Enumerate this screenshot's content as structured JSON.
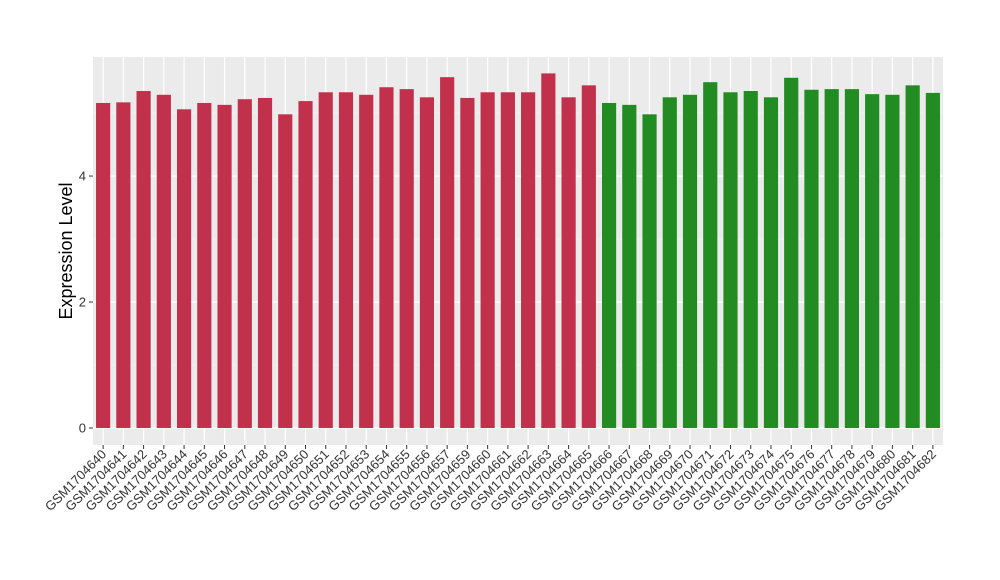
{
  "chart_data": {
    "type": "bar",
    "y_label": "Expression Level",
    "categories": [
      "GSM1704640",
      "GSM1704641",
      "GSM1704642",
      "GSM1704643",
      "GSM1704644",
      "GSM1704645",
      "GSM1704646",
      "GSM1704647",
      "GSM1704648",
      "GSM1704649",
      "GSM1704650",
      "GSM1704651",
      "GSM1704652",
      "GSM1704653",
      "GSM1704654",
      "GSM1704655",
      "GSM1704656",
      "GSM1704657",
      "GSM1704659",
      "GSM1704660",
      "GSM1704661",
      "GSM1704662",
      "GSM1704663",
      "GSM1704664",
      "GSM1704665",
      "GSM1704666",
      "GSM1704667",
      "GSM1704668",
      "GSM1704669",
      "GSM1704670",
      "GSM1704671",
      "GSM1704672",
      "GSM1704673",
      "GSM1704674",
      "GSM1704675",
      "GSM1704676",
      "GSM1704677",
      "GSM1704678",
      "GSM1704679",
      "GSM1704680",
      "GSM1704681",
      "GSM1704682"
    ],
    "values": [
      5.16,
      5.17,
      5.35,
      5.29,
      5.06,
      5.16,
      5.13,
      5.22,
      5.24,
      4.98,
      5.19,
      5.33,
      5.33,
      5.29,
      5.41,
      5.38,
      5.25,
      5.57,
      5.24,
      5.33,
      5.33,
      5.33,
      5.63,
      5.25,
      5.44,
      5.16,
      5.13,
      4.98,
      5.25,
      5.29,
      5.49,
      5.33,
      5.35,
      5.25,
      5.56,
      5.37,
      5.38,
      5.38,
      5.3,
      5.29,
      5.44,
      5.32
    ],
    "colors": [
      "#c1314b",
      "#c1314b",
      "#c1314b",
      "#c1314b",
      "#c1314b",
      "#c1314b",
      "#c1314b",
      "#c1314b",
      "#c1314b",
      "#c1314b",
      "#c1314b",
      "#c1314b",
      "#c1314b",
      "#c1314b",
      "#c1314b",
      "#c1314b",
      "#c1314b",
      "#c1314b",
      "#c1314b",
      "#c1314b",
      "#c1314b",
      "#c1314b",
      "#c1314b",
      "#c1314b",
      "#c1314b",
      "#228b22",
      "#228b22",
      "#228b22",
      "#228b22",
      "#228b22",
      "#228b22",
      "#228b22",
      "#228b22",
      "#228b22",
      "#228b22",
      "#228b22",
      "#228b22",
      "#228b22",
      "#228b22",
      "#228b22",
      "#228b22",
      "#228b22"
    ],
    "ylim": [
      -0.27,
      5.89
    ],
    "yticks": [
      0,
      2,
      4
    ],
    "grid": true
  }
}
